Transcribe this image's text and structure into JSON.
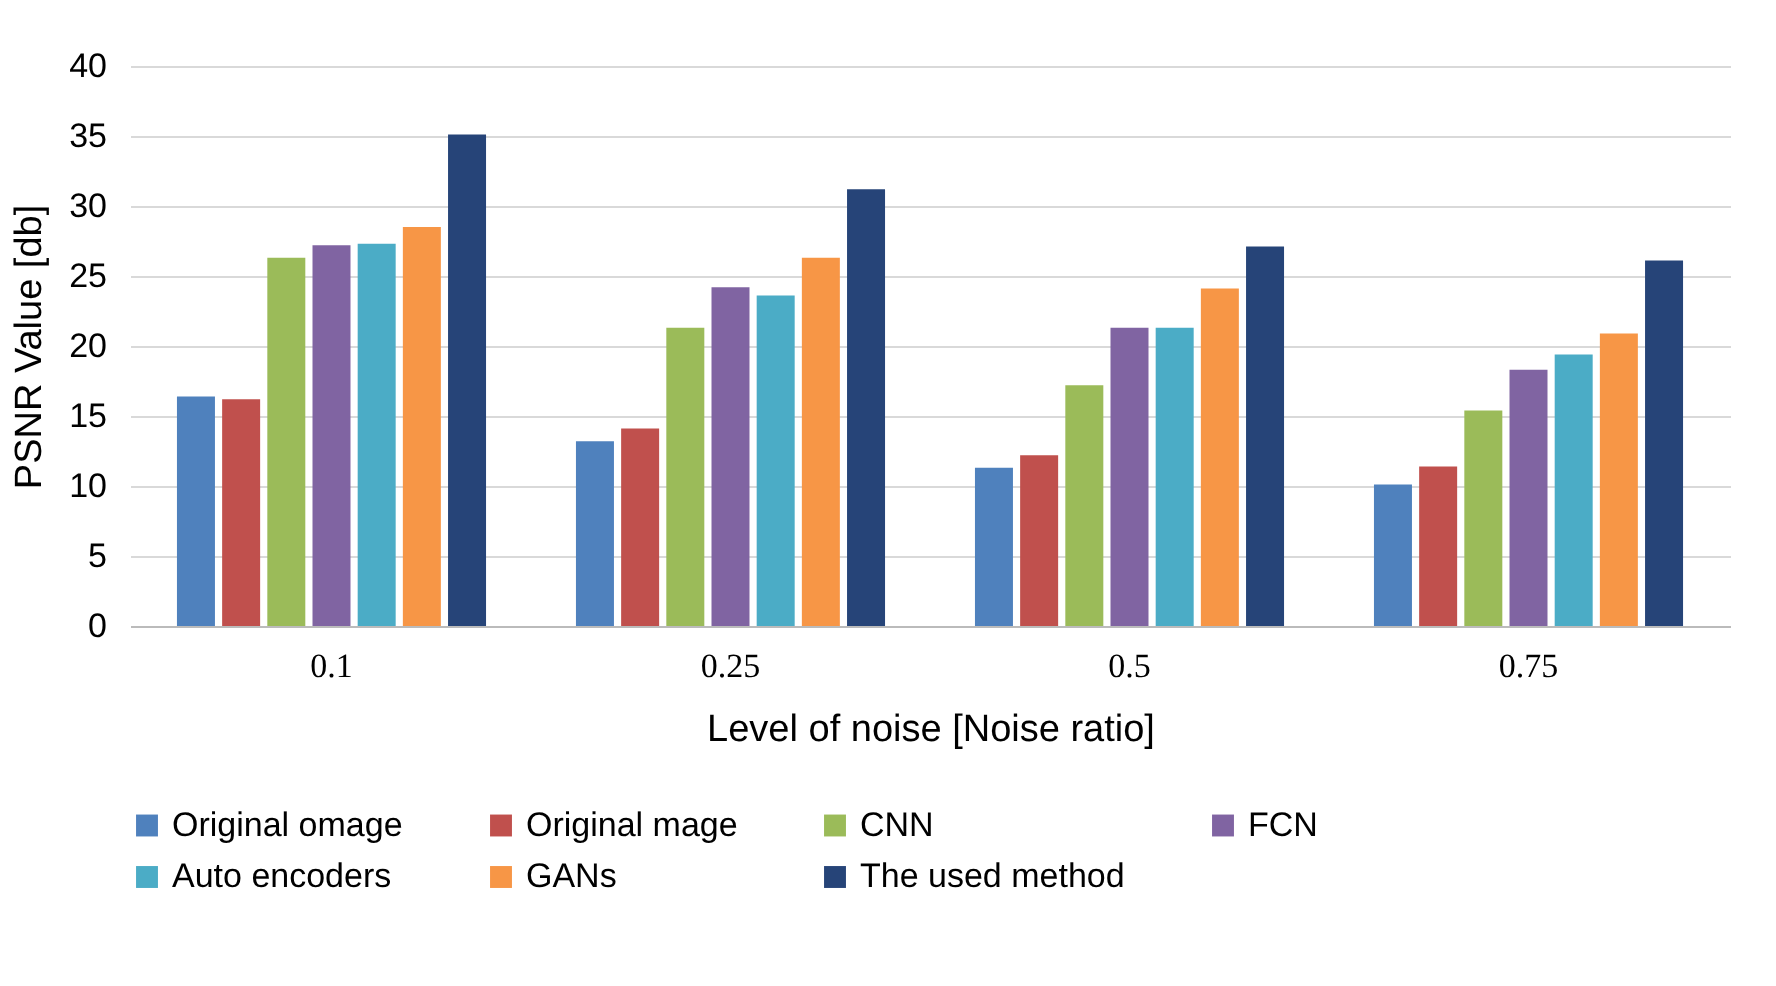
{
  "chart_data": {
    "type": "bar",
    "xlabel": "Level of noise [Noise ratio]",
    "ylabel": "PSNR Value [db]",
    "categories": [
      "0.1",
      "0.25",
      "0.5",
      "0.75"
    ],
    "series": [
      {
        "name": "Original omage",
        "color": "#4f81bd",
        "values": [
          16.4,
          13.2,
          11.3,
          10.1
        ]
      },
      {
        "name": "Original mage",
        "color": "#c0504d",
        "values": [
          16.2,
          14.1,
          12.2,
          11.4
        ]
      },
      {
        "name": "CNN",
        "color": "#9bbb59",
        "values": [
          26.3,
          21.3,
          17.2,
          15.4
        ]
      },
      {
        "name": "FCN",
        "color": "#8064a2",
        "values": [
          27.2,
          24.2,
          21.3,
          18.3
        ]
      },
      {
        "name": "Auto encoders",
        "color": "#4bacc6",
        "values": [
          27.3,
          23.6,
          21.3,
          19.4
        ]
      },
      {
        "name": "GANs",
        "color": "#f79646",
        "values": [
          28.5,
          26.3,
          24.1,
          20.9
        ]
      },
      {
        "name": "The used method",
        "color": "#264478",
        "values": [
          35.1,
          31.2,
          27.1,
          26.1
        ]
      }
    ],
    "ylim": [
      0,
      40
    ],
    "yticks": [
      0,
      5,
      10,
      15,
      20,
      25,
      30,
      35,
      40
    ],
    "grid": "y",
    "legend": "bottom"
  }
}
